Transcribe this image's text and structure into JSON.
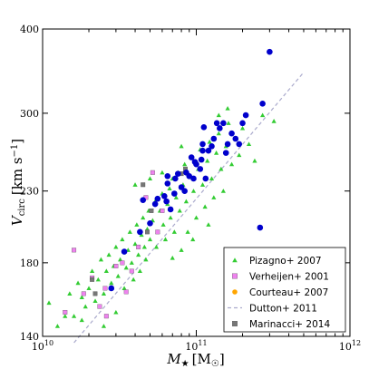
{
  "chart_data": {
    "type": "scatter",
    "x_scale": "log",
    "y_scale": "log",
    "xlim": [
      10000000000.0,
      1000000000000.0
    ],
    "ylim": [
      140,
      400
    ],
    "x_ticks": [
      {
        "value": 10000000000.0,
        "base": "10",
        "exp": "10"
      },
      {
        "value": 100000000000.0,
        "base": "10",
        "exp": "11"
      },
      {
        "value": 1000000000000.0,
        "base": "10",
        "exp": "12"
      }
    ],
    "y_ticks": [
      {
        "value": 140,
        "label": "140"
      },
      {
        "value": 180,
        "label": "180"
      },
      {
        "value": 230,
        "label": "230"
      },
      {
        "value": 300,
        "label": "300"
      },
      {
        "value": 400,
        "label": "400"
      }
    ],
    "xlabel": {
      "main": "M",
      "sub": "★",
      "unit": "[M",
      "unit_sub": "☉",
      "close": "]"
    },
    "ylabel": {
      "main": "V",
      "sub": "circ",
      "unit": "[km s",
      "unit_sup": "−1",
      "close": "]"
    },
    "legend_position": "bottom-right",
    "legend": [
      {
        "name": "Pizagno+ 2007",
        "marker": "triangle",
        "color": "#33cc33"
      },
      {
        "name": "Verheijen+ 2001",
        "marker": "square",
        "color": "#ee82ee"
      },
      {
        "name": "Courteau+ 2007",
        "marker": "circle",
        "color": "#ffa500"
      },
      {
        "name": "Dutton+ 2011",
        "marker": "dashed-line",
        "color": "#aaaacc"
      },
      {
        "name": "Marinacci+ 2014",
        "marker": "square",
        "color": "#777777"
      }
    ],
    "series": [
      {
        "name": "Pizagno+ 2007",
        "marker": "triangle",
        "color": "#33cc33",
        "points": [
          [
            11000000000.0,
            157
          ],
          [
            12500000000.0,
            145
          ],
          [
            14000000000.0,
            150
          ],
          [
            15000000000.0,
            162
          ],
          [
            16000000000.0,
            150
          ],
          [
            17000000000.0,
            168
          ],
          [
            18000000000.0,
            160
          ],
          [
            19000000000.0,
            155
          ],
          [
            20000000000.0,
            165
          ],
          [
            21000000000.0,
            175
          ],
          [
            22000000000.0,
            158
          ],
          [
            23000000000.0,
            170
          ],
          [
            24000000000.0,
            182
          ],
          [
            25000000000.0,
            162
          ],
          [
            26000000000.0,
            175
          ],
          [
            27000000000.0,
            185
          ],
          [
            28000000000.0,
            168
          ],
          [
            29000000000.0,
            178
          ],
          [
            30000000000.0,
            190
          ],
          [
            31000000000.0,
            172
          ],
          [
            32000000000.0,
            182
          ],
          [
            33000000000.0,
            195
          ],
          [
            34000000000.0,
            165
          ],
          [
            35000000000.0,
            177
          ],
          [
            36000000000.0,
            188
          ],
          [
            37000000000.0,
            200
          ],
          [
            38000000000.0,
            180
          ],
          [
            39000000000.0,
            170
          ],
          [
            40000000000.0,
            192
          ],
          [
            41000000000.0,
            205
          ],
          [
            42000000000.0,
            185
          ],
          [
            43000000000.0,
            175
          ],
          [
            44000000000.0,
            198
          ],
          [
            45000000000.0,
            210
          ],
          [
            46000000000.0,
            190
          ],
          [
            47000000000.0,
            182
          ],
          [
            48000000000.0,
            202
          ],
          [
            49000000000.0,
            215
          ],
          [
            50000000000.0,
            195
          ],
          [
            52000000000.0,
            208
          ],
          [
            54000000000.0,
            222
          ],
          [
            55000000000.0,
            190
          ],
          [
            56000000000.0,
            200
          ],
          [
            58000000000.0,
            215
          ],
          [
            60000000000.0,
            228
          ],
          [
            61000000000.0,
            205
          ],
          [
            63000000000.0,
            195
          ],
          [
            65000000000.0,
            220
          ],
          [
            67000000000.0,
            232
          ],
          [
            68000000000.0,
            210
          ],
          [
            70000000000.0,
            240
          ],
          [
            72000000000.0,
            200
          ],
          [
            74000000000.0,
            225
          ],
          [
            76000000000.0,
            245
          ],
          [
            78000000000.0,
            215
          ],
          [
            80000000000.0,
            188
          ],
          [
            82000000000.0,
            235
          ],
          [
            84000000000.0,
            252
          ],
          [
            86000000000.0,
            222
          ],
          [
            88000000000.0,
            200
          ],
          [
            90000000000.0,
            243
          ],
          [
            93000000000.0,
            258
          ],
          [
            96000000000.0,
            230
          ],
          [
            100000000000.0,
            210
          ],
          [
            103000000000.0,
            248
          ],
          [
            106000000000.0,
            265
          ],
          [
            110000000000.0,
            235
          ],
          [
            114000000000.0,
            218
          ],
          [
            118000000000.0,
            255
          ],
          [
            122000000000.0,
            272
          ],
          [
            126000000000.0,
            240
          ],
          [
            130000000000.0,
            225
          ],
          [
            135000000000.0,
            262
          ],
          [
            140000000000.0,
            280
          ],
          [
            145000000000.0,
            248
          ],
          [
            150000000000.0,
            230
          ],
          [
            156000000000.0,
            268
          ],
          [
            162000000000.0,
            290
          ],
          [
            170000000000.0,
            252
          ],
          [
            180000000000.0,
            275
          ],
          [
            190000000000.0,
            260
          ],
          [
            200000000000.0,
            285
          ],
          [
            220000000000.0,
            270
          ],
          [
            240000000000.0,
            255
          ],
          [
            270000000000.0,
            298
          ],
          [
            320000000000.0,
            292
          ],
          [
            160000000000.0,
            305
          ],
          [
            140000000000.0,
            298
          ],
          [
            80000000000.0,
            268
          ],
          [
            60000000000.0,
            245
          ],
          [
            50000000000.0,
            240
          ],
          [
            40000000000.0,
            235
          ],
          [
            95000000000.0,
            195
          ],
          [
            120000000000.0,
            205
          ],
          [
            70000000000.0,
            183
          ],
          [
            30000000000.0,
            152
          ],
          [
            25000000000.0,
            145
          ],
          [
            18000000000.0,
            148
          ]
        ]
      },
      {
        "name": "Verheijen+ 2001",
        "marker": "square",
        "color": "#ee82ee",
        "points": [
          [
            14000000000.0,
            152
          ],
          [
            16000000000.0,
            188
          ],
          [
            18500000000.0,
            162
          ],
          [
            21000000000.0,
            171
          ],
          [
            23500000000.0,
            155
          ],
          [
            25500000000.0,
            165
          ],
          [
            26000000000.0,
            150
          ],
          [
            30000000000.0,
            178
          ],
          [
            33000000000.0,
            180
          ],
          [
            35000000000.0,
            163
          ],
          [
            38000000000.0,
            175
          ],
          [
            42000000000.0,
            190
          ],
          [
            47000000000.0,
            225
          ],
          [
            52000000000.0,
            245
          ],
          [
            56000000000.0,
            200
          ],
          [
            60000000000.0,
            215
          ]
        ]
      },
      {
        "name": "Marinacci+ 2014",
        "marker": "square",
        "color": "#777777",
        "points": [
          [
            21000000000.0,
            170
          ],
          [
            22000000000.0,
            162
          ],
          [
            45000000000.0,
            235
          ],
          [
            48000000000.0,
            200
          ],
          [
            51000000000.0,
            215
          ],
          [
            72000000000.0,
            228
          ],
          [
            80000000000.0,
            244
          ],
          [
            85000000000.0,
            248
          ]
        ]
      },
      {
        "name": "Courteau+ 2007",
        "marker": "circle",
        "color": "#ffa500",
        "points": []
      },
      {
        "name": "",
        "marker": "circle",
        "color": "#0000cc",
        "points": [
          [
            28000000000.0,
            165
          ],
          [
            34000000000.0,
            187
          ],
          [
            43000000000.0,
            200
          ],
          [
            45000000000.0,
            223
          ],
          [
            50000000000.0,
            206
          ],
          [
            54000000000.0,
            220
          ],
          [
            56000000000.0,
            224
          ],
          [
            62000000000.0,
            226
          ],
          [
            64000000000.0,
            222
          ],
          [
            65000000000.0,
            236
          ],
          [
            65000000000.0,
            242
          ],
          [
            68000000000.0,
            216
          ],
          [
            72000000000.0,
            228
          ],
          [
            73000000000.0,
            240
          ],
          [
            76000000000.0,
            244
          ],
          [
            80000000000.0,
            233
          ],
          [
            84000000000.0,
            230
          ],
          [
            86000000000.0,
            245
          ],
          [
            90000000000.0,
            242
          ],
          [
            93000000000.0,
            258
          ],
          [
            96000000000.0,
            240
          ],
          [
            98000000000.0,
            254
          ],
          [
            100000000000.0,
            252
          ],
          [
            106000000000.0,
            248
          ],
          [
            108000000000.0,
            256
          ],
          [
            110000000000.0,
            264
          ],
          [
            110000000000.0,
            270
          ],
          [
            112000000000.0,
            286
          ],
          [
            115000000000.0,
            240
          ],
          [
            120000000000.0,
            264
          ],
          [
            126000000000.0,
            268
          ],
          [
            130000000000.0,
            275
          ],
          [
            136000000000.0,
            290
          ],
          [
            142000000000.0,
            285
          ],
          [
            150000000000.0,
            290
          ],
          [
            156000000000.0,
            262
          ],
          [
            160000000000.0,
            270
          ],
          [
            170000000000.0,
            280
          ],
          [
            180000000000.0,
            275
          ],
          [
            190000000000.0,
            270
          ],
          [
            200000000000.0,
            290
          ],
          [
            210000000000.0,
            298
          ],
          [
            260000000000.0,
            203
          ],
          [
            270000000000.0,
            310
          ],
          [
            300000000000.0,
            370
          ]
        ]
      }
    ],
    "lines": [
      {
        "name": "Dutton+ 2011",
        "style": "dashed",
        "color": "#aaaacc",
        "points": [
          [
            16000000000.0,
            137
          ],
          [
            500000000000.0,
            345
          ]
        ]
      }
    ]
  }
}
